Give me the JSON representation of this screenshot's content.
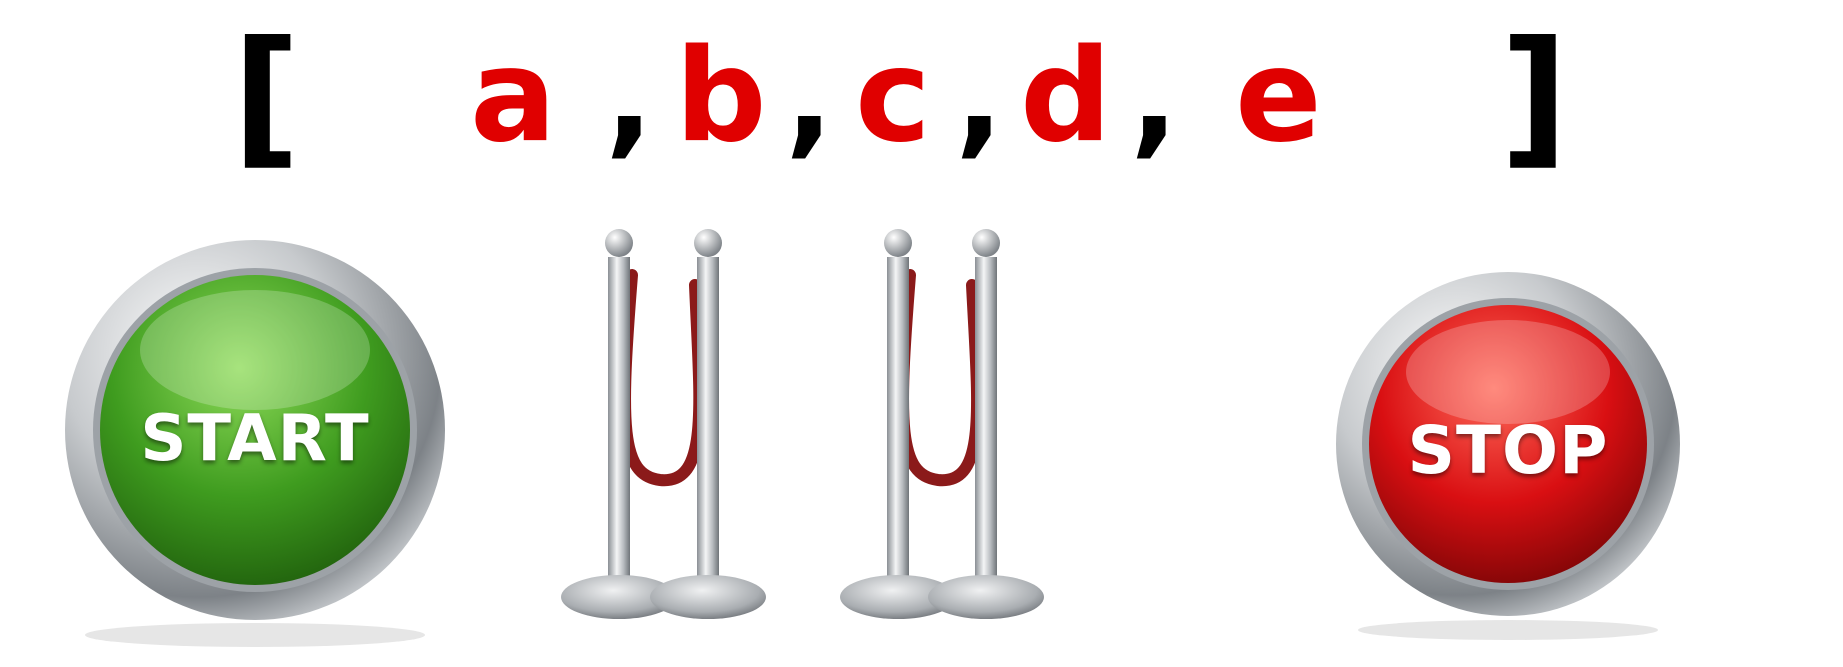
{
  "sequence": {
    "open_bracket": "[",
    "close_bracket": "]",
    "separator": ",",
    "items": [
      "a",
      "b",
      "c",
      "d",
      "e"
    ]
  },
  "start_button": {
    "label": "START",
    "color": "#3f9c1f"
  },
  "stop_button": {
    "label": "STOP",
    "color": "#d90f12"
  },
  "colors": {
    "item_text": "#e00000",
    "bracket_text": "#000000",
    "rope": "#8b1a1a",
    "metal": "#c9ccd0"
  },
  "icons": [
    "start-button-icon",
    "stanchion-barrier-icon",
    "stop-button-icon"
  ]
}
